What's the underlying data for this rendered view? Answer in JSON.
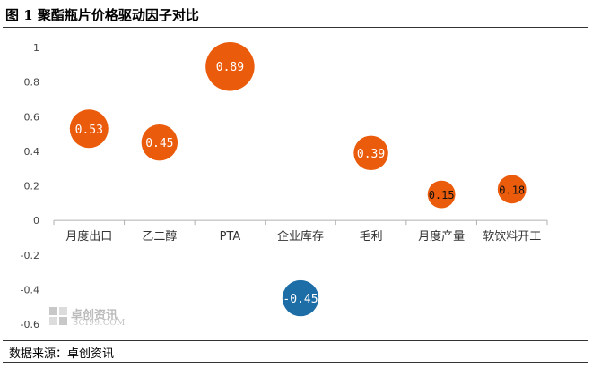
{
  "header": {
    "title": "图 1 聚酯瓶片价格驱动因子对比"
  },
  "footer": {
    "source": "数据来源：卓创资讯"
  },
  "watermark": {
    "name": "卓创资讯",
    "site": "SCI99.COM"
  },
  "colors": {
    "positive": "#ea5b0c",
    "negative": "#1d6ea6",
    "axis": "#b0b0b0"
  },
  "chart_data": {
    "type": "bubble",
    "title": "",
    "categories": [
      "月度出口",
      "乙二醇",
      "PTA",
      "企业库存",
      "毛利",
      "月度产量",
      "软饮料开工"
    ],
    "values": [
      0.53,
      0.45,
      0.89,
      -0.45,
      0.39,
      0.15,
      0.18
    ],
    "data_labels": [
      "0.53",
      "0.45",
      "0.89",
      "-0.45",
      "0.39",
      "0.15",
      "0.18"
    ],
    "ylim": [
      -0.6,
      1
    ],
    "yticks": [
      "1",
      "0.8",
      "0.6",
      "0.4",
      "0.2",
      "0",
      "-0.2",
      "-0.4",
      "-0.6"
    ],
    "grid": false,
    "legend": "none"
  }
}
